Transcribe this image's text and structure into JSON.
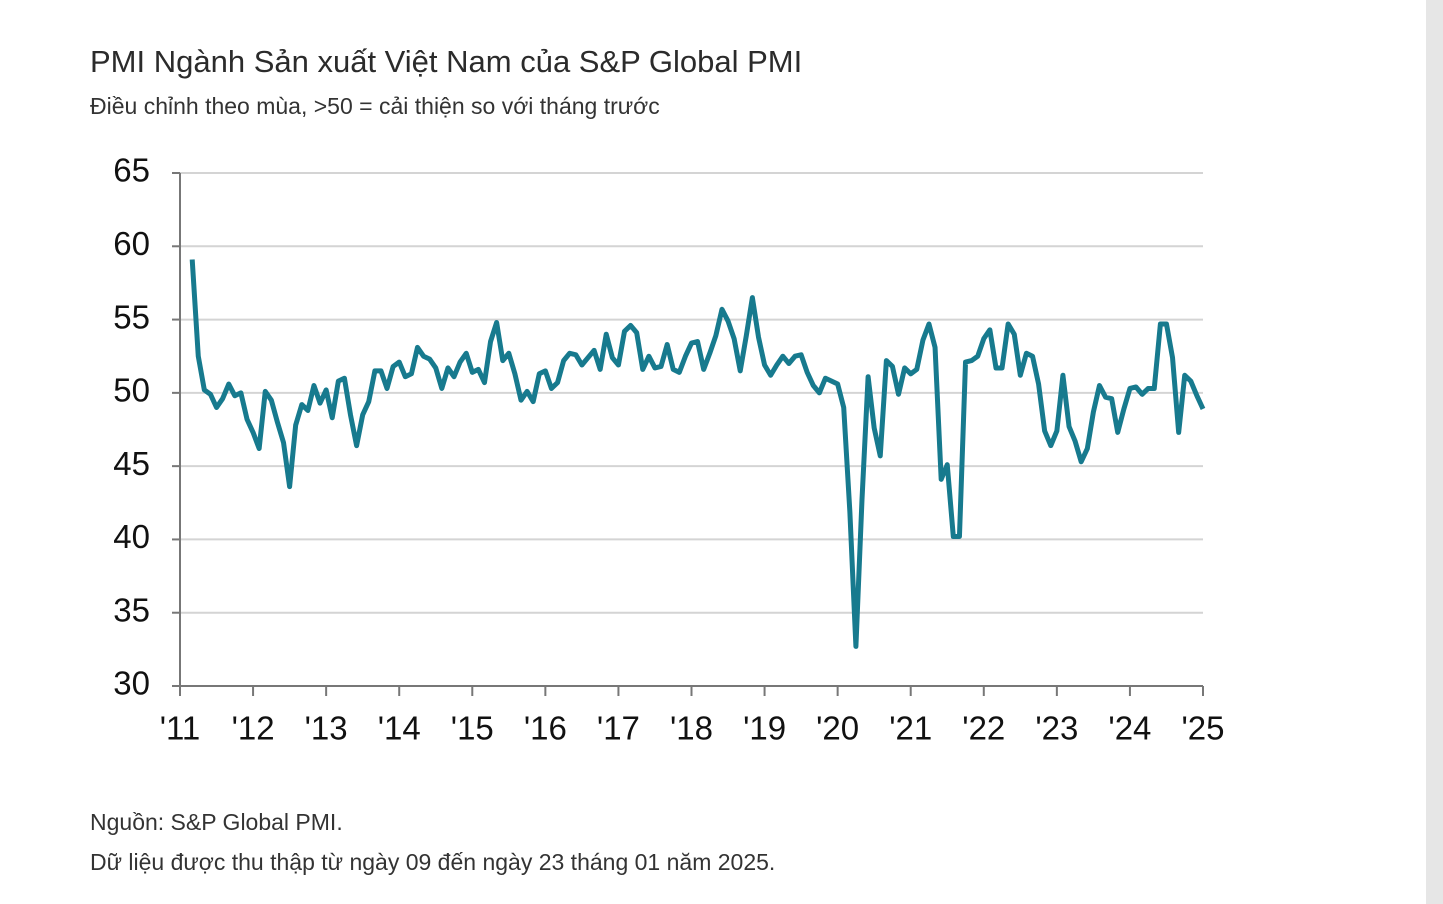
{
  "chart_data": {
    "type": "line",
    "title": "PMI Ngành Sản xuất Việt Nam của S&P Global PMI",
    "subtitle": "Điều chỉnh theo mùa, >50 = cải thiện so với tháng trước",
    "notes": [
      "Nguồn: S&P Global PMI.",
      "Dữ liệu được thu thập từ ngày 09 đến ngày 23 tháng 01 năm 2025."
    ],
    "color": "#177a8e",
    "grid": true,
    "xlim": [
      2011,
      2025
    ],
    "xticks": [
      {
        "value": 2011,
        "label": "'11"
      },
      {
        "value": 2012,
        "label": "'12"
      },
      {
        "value": 2013,
        "label": "'13"
      },
      {
        "value": 2014,
        "label": "'14"
      },
      {
        "value": 2015,
        "label": "'15"
      },
      {
        "value": 2016,
        "label": "'16"
      },
      {
        "value": 2017,
        "label": "'17"
      },
      {
        "value": 2018,
        "label": "'18"
      },
      {
        "value": 2019,
        "label": "'19"
      },
      {
        "value": 2020,
        "label": "'20"
      },
      {
        "value": 2021,
        "label": "'21"
      },
      {
        "value": 2022,
        "label": "'22"
      },
      {
        "value": 2023,
        "label": "'23"
      },
      {
        "value": 2024,
        "label": "'24"
      },
      {
        "value": 2025,
        "label": "'25"
      }
    ],
    "ylim": [
      30,
      65
    ],
    "yticks": [
      30,
      35,
      40,
      45,
      50,
      55,
      60,
      65
    ],
    "x": [
      2011.167,
      2011.25,
      2011.333,
      2011.417,
      2011.5,
      2011.583,
      2011.667,
      2011.75,
      2011.833,
      2011.917,
      2012.0,
      2012.083,
      2012.167,
      2012.25,
      2012.333,
      2012.417,
      2012.5,
      2012.583,
      2012.667,
      2012.75,
      2012.833,
      2012.917,
      2013.0,
      2013.083,
      2013.167,
      2013.25,
      2013.333,
      2013.417,
      2013.5,
      2013.583,
      2013.667,
      2013.75,
      2013.833,
      2013.917,
      2014.0,
      2014.083,
      2014.167,
      2014.25,
      2014.333,
      2014.417,
      2014.5,
      2014.583,
      2014.667,
      2014.75,
      2014.833,
      2014.917,
      2015.0,
      2015.083,
      2015.167,
      2015.25,
      2015.333,
      2015.417,
      2015.5,
      2015.583,
      2015.667,
      2015.75,
      2015.833,
      2015.917,
      2016.0,
      2016.083,
      2016.167,
      2016.25,
      2016.333,
      2016.417,
      2016.5,
      2016.583,
      2016.667,
      2016.75,
      2016.833,
      2016.917,
      2017.0,
      2017.083,
      2017.167,
      2017.25,
      2017.333,
      2017.417,
      2017.5,
      2017.583,
      2017.667,
      2017.75,
      2017.833,
      2017.917,
      2018.0,
      2018.083,
      2018.167,
      2018.25,
      2018.333,
      2018.417,
      2018.5,
      2018.583,
      2018.667,
      2018.75,
      2018.833,
      2018.917,
      2019.0,
      2019.083,
      2019.167,
      2019.25,
      2019.333,
      2019.417,
      2019.5,
      2019.583,
      2019.667,
      2019.75,
      2019.833,
      2019.917,
      2020.0,
      2020.083,
      2020.167,
      2020.25,
      2020.333,
      2020.417,
      2020.5,
      2020.583,
      2020.667,
      2020.75,
      2020.833,
      2020.917,
      2021.0,
      2021.083,
      2021.167,
      2021.25,
      2021.333,
      2021.417,
      2021.5,
      2021.583,
      2021.667,
      2021.75,
      2021.833,
      2021.917,
      2022.0,
      2022.083,
      2022.167,
      2022.25,
      2022.333,
      2022.417,
      2022.5,
      2022.583,
      2022.667,
      2022.75,
      2022.833,
      2022.917,
      2023.0,
      2023.083,
      2023.167,
      2023.25,
      2023.333,
      2023.417,
      2023.5,
      2023.583,
      2023.667,
      2023.75,
      2023.833,
      2023.917,
      2024.0,
      2024.083,
      2024.167,
      2024.25,
      2024.333,
      2024.417,
      2024.5,
      2024.583,
      2024.667,
      2024.75,
      2024.833,
      2024.917,
      2025.0
    ],
    "values": [
      59.1,
      52.5,
      50.2,
      49.9,
      49.0,
      49.6,
      50.6,
      49.8,
      50.0,
      48.2,
      47.3,
      46.2,
      50.1,
      49.5,
      48.0,
      46.6,
      43.6,
      47.8,
      49.2,
      48.8,
      50.5,
      49.3,
      50.2,
      48.3,
      50.8,
      51.0,
      48.5,
      46.4,
      48.5,
      49.4,
      51.5,
      51.5,
      50.3,
      51.8,
      52.1,
      51.1,
      51.3,
      53.1,
      52.5,
      52.3,
      51.7,
      50.3,
      51.7,
      51.1,
      52.1,
      52.7,
      51.4,
      51.6,
      50.7,
      53.5,
      54.8,
      52.2,
      52.7,
      51.3,
      49.5,
      50.1,
      49.4,
      51.3,
      51.5,
      50.3,
      50.7,
      52.2,
      52.7,
      52.6,
      51.9,
      52.4,
      52.9,
      51.6,
      54.0,
      52.4,
      51.9,
      54.2,
      54.6,
      54.1,
      51.6,
      52.5,
      51.7,
      51.8,
      53.3,
      51.6,
      51.4,
      52.5,
      53.4,
      53.5,
      51.6,
      52.7,
      53.9,
      55.7,
      54.9,
      53.7,
      51.5,
      53.9,
      56.5,
      53.8,
      51.9,
      51.2,
      51.9,
      52.5,
      52.0,
      52.5,
      52.6,
      51.4,
      50.5,
      50.0,
      51.0,
      50.8,
      50.6,
      49.0,
      41.9,
      32.7,
      42.7,
      51.1,
      47.6,
      45.7,
      52.2,
      51.8,
      49.9,
      51.7,
      51.3,
      51.6,
      53.6,
      54.7,
      53.1,
      44.1,
      45.1,
      40.2,
      40.2,
      52.1,
      52.2,
      52.5,
      53.7,
      54.3,
      51.7,
      51.7,
      54.7,
      54.0,
      51.2,
      52.7,
      52.5,
      50.6,
      47.4,
      46.4,
      47.4,
      51.2,
      47.7,
      46.7,
      45.3,
      46.2,
      48.7,
      50.5,
      49.7,
      49.6,
      47.3,
      48.9,
      50.3,
      50.4,
      49.9,
      50.3,
      50.3,
      54.7,
      54.7,
      52.4,
      47.3,
      51.2,
      50.8,
      49.8,
      48.9
    ]
  }
}
